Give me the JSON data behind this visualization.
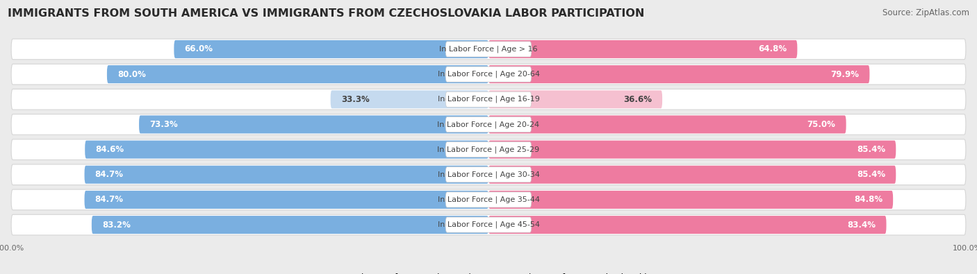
{
  "title": "IMMIGRANTS FROM SOUTH AMERICA VS IMMIGRANTS FROM CZECHOSLOVAKIA LABOR PARTICIPATION",
  "source": "Source: ZipAtlas.com",
  "categories": [
    "In Labor Force | Age > 16",
    "In Labor Force | Age 20-64",
    "In Labor Force | Age 16-19",
    "In Labor Force | Age 20-24",
    "In Labor Force | Age 25-29",
    "In Labor Force | Age 30-34",
    "In Labor Force | Age 35-44",
    "In Labor Force | Age 45-54"
  ],
  "south_america_values": [
    66.0,
    80.0,
    33.3,
    73.3,
    84.6,
    84.7,
    84.7,
    83.2
  ],
  "czechoslovakia_values": [
    64.8,
    79.9,
    36.6,
    75.0,
    85.4,
    85.4,
    84.8,
    83.4
  ],
  "south_america_color": "#7AAFE0",
  "czechoslovakia_color": "#EE7BA0",
  "south_america_light_color": "#C5DAEF",
  "czechoslovakia_light_color": "#F5C0D0",
  "background_color": "#EBEBEB",
  "label_color_dark": "#444444",
  "label_color_white": "#FFFFFF",
  "legend_label_sa": "Immigrants from South America",
  "legend_label_cz": "Immigrants from Czechoslovakia",
  "max_value": 100.0,
  "title_fontsize": 11.5,
  "source_fontsize": 8.5,
  "value_fontsize": 8.5,
  "category_fontsize": 8,
  "legend_fontsize": 9,
  "axis_label_fontsize": 8
}
